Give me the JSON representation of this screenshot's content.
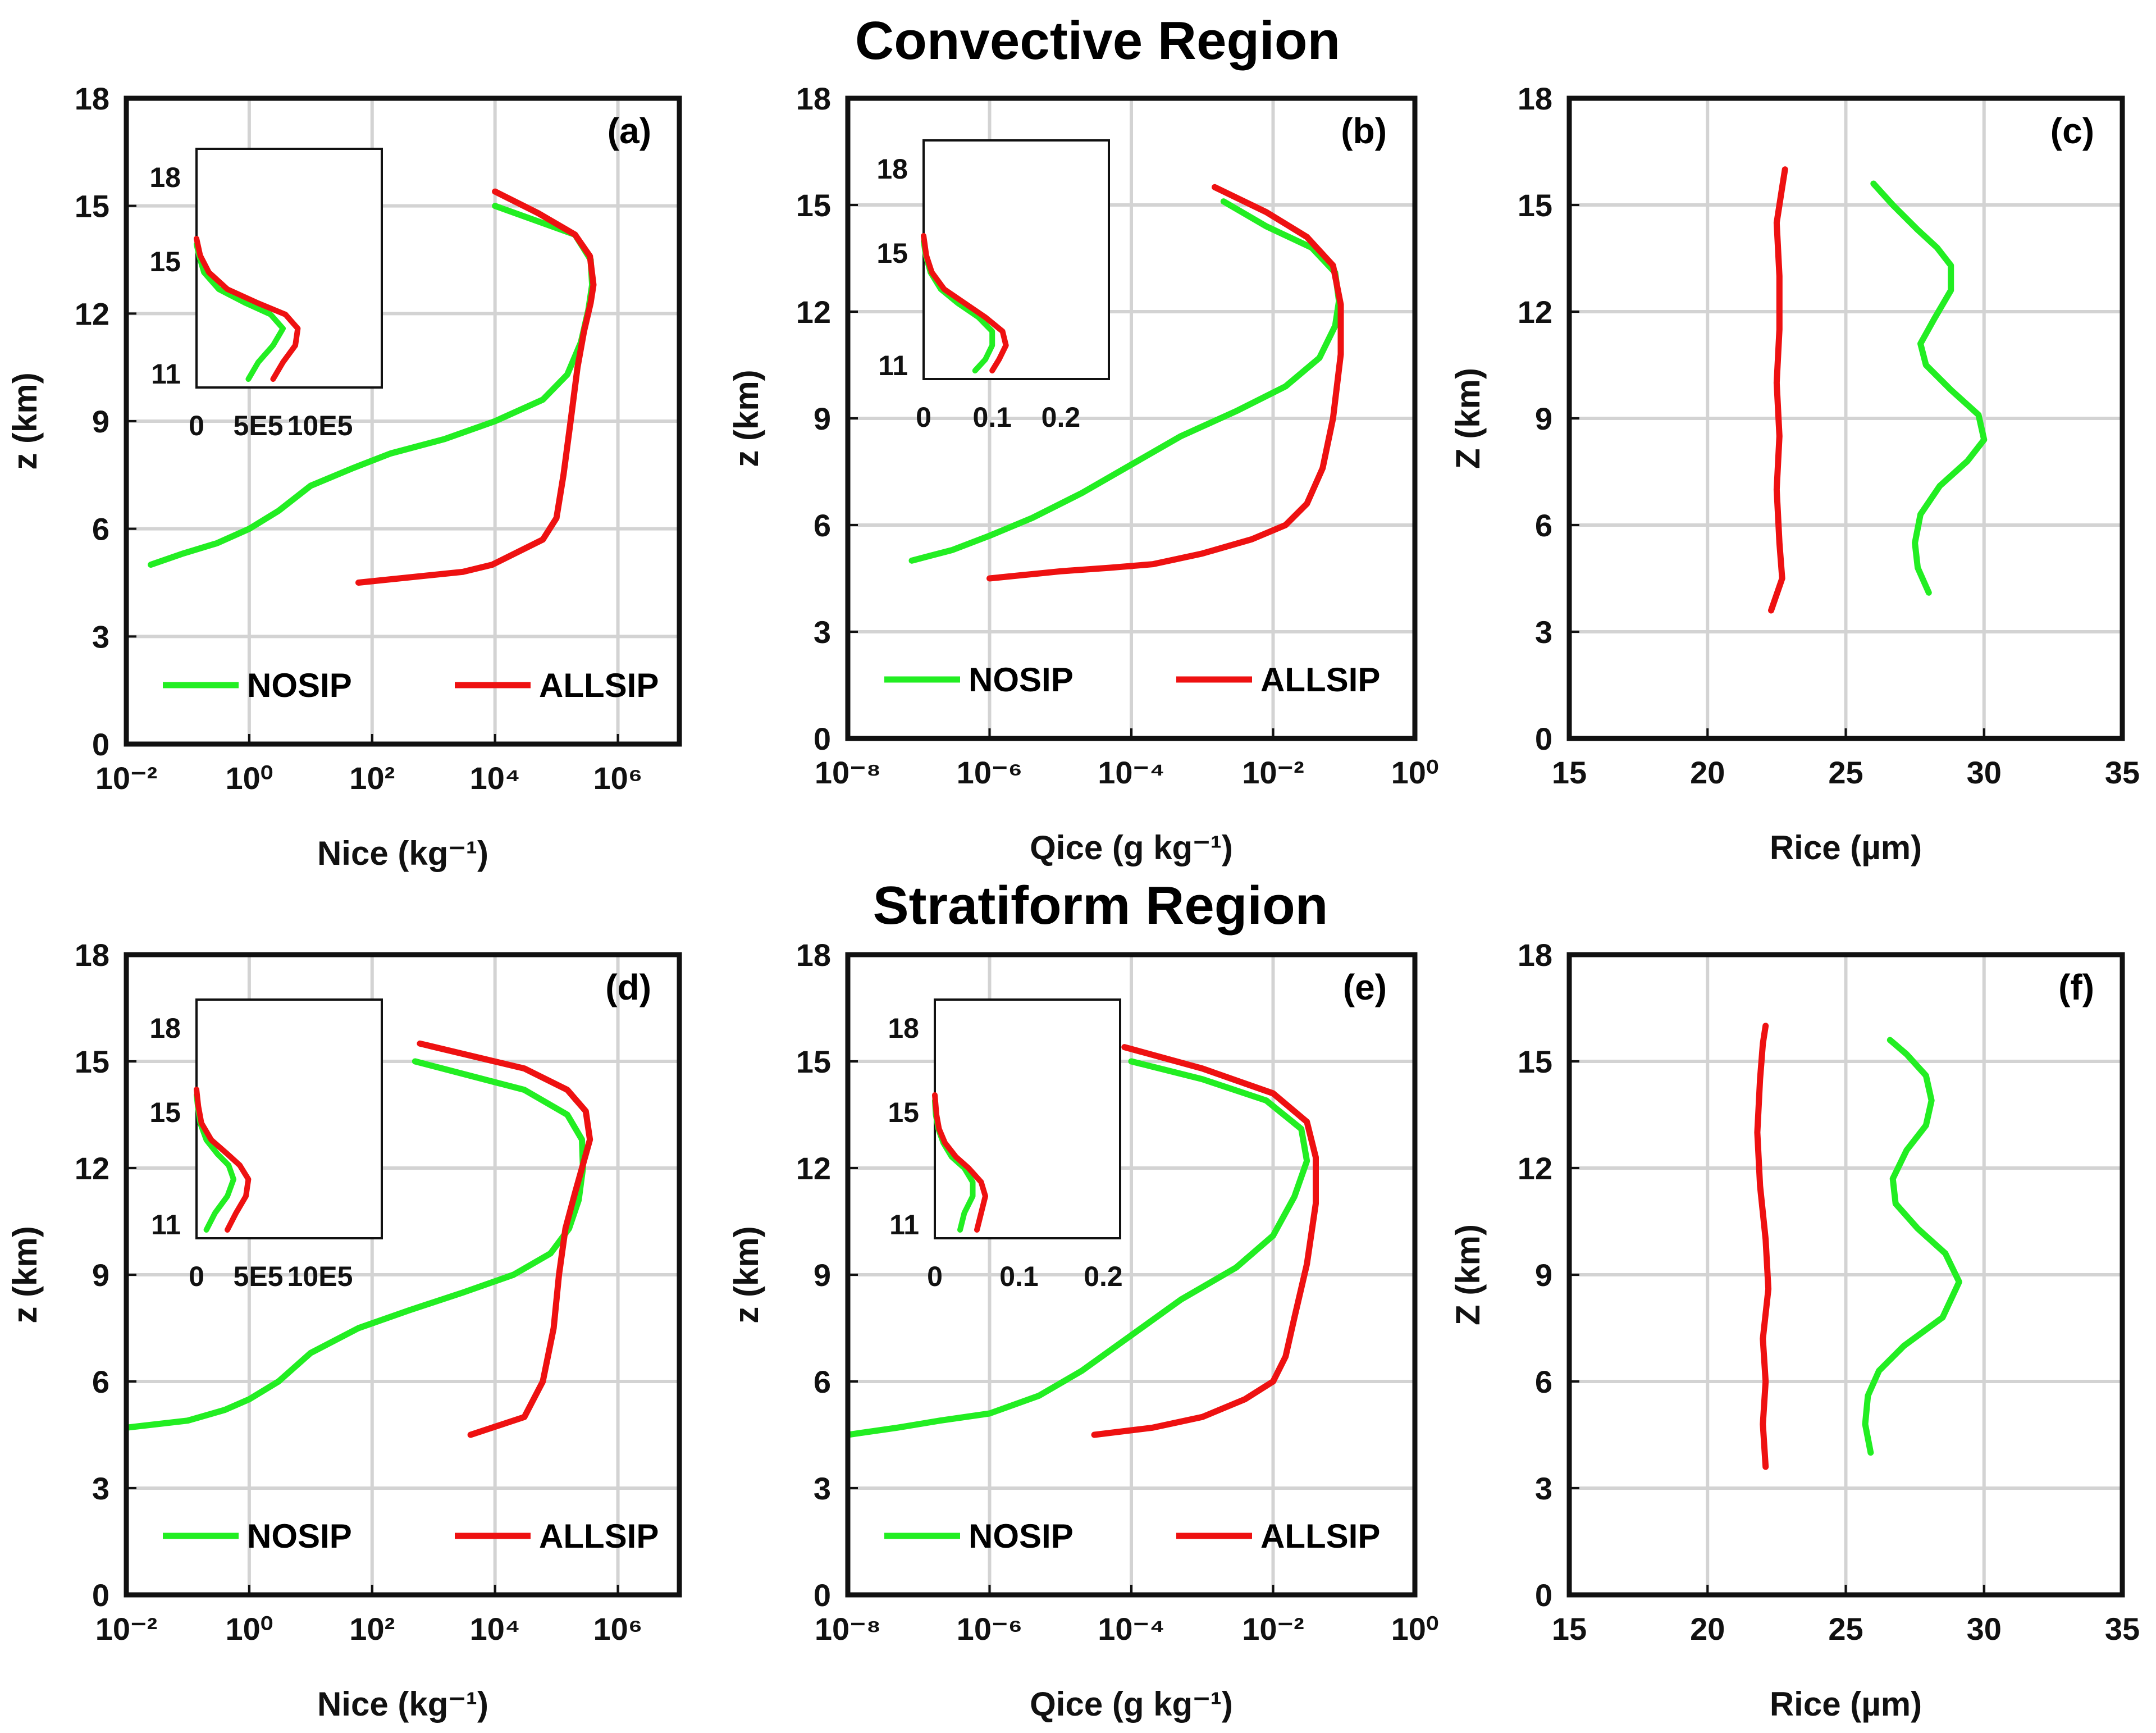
{
  "section_titles": {
    "top": "Convective Region",
    "bottom": "Stratiform Region"
  },
  "colors": {
    "nosip": "#22ee22",
    "allsip": "#ee1111",
    "grid": "#d3d3d3",
    "axes": "#111111"
  },
  "chart_data": [
    {
      "panel": "(a)",
      "type": "line",
      "xscale": "log",
      "xlim": [
        0.01,
        10000000
      ],
      "ylim": [
        0,
        18
      ],
      "xlabel": "Nice (kg⁻¹)",
      "ylabel": "z (km)",
      "xticks": [
        0.01,
        1,
        100,
        10000,
        1000000
      ],
      "xtick_labels": [
        "10⁻²",
        "10⁰",
        "10²",
        "10⁴",
        "10⁶"
      ],
      "yticks": [
        0,
        3,
        6,
        9,
        12,
        15,
        18
      ],
      "ytick_labels": [
        "0",
        "3",
        "6",
        "9",
        "12",
        "15",
        "18"
      ],
      "grid": true,
      "legend_position": "bottom",
      "series": [
        {
          "name": "NOSIP",
          "x": [
            0.025,
            0.08,
            0.3,
            1,
            3,
            10,
            50,
            200,
            1500,
            10000,
            60000,
            150000,
            250000,
            330000,
            380000,
            360000,
            200000,
            10000
          ],
          "y": [
            5.0,
            5.3,
            5.6,
            6.0,
            6.5,
            7.2,
            7.7,
            8.1,
            8.5,
            9.0,
            9.6,
            10.3,
            11.2,
            12.1,
            12.8,
            13.5,
            14.2,
            15.0
          ]
        },
        {
          "name": "ALLSIP",
          "x": [
            60,
            3000,
            9000,
            60000,
            100000,
            130000,
            170000,
            220000,
            280000,
            360000,
            400000,
            350000,
            200000,
            50000,
            10000
          ],
          "y": [
            4.5,
            4.8,
            5.0,
            5.7,
            6.3,
            7.5,
            9.0,
            10.5,
            11.5,
            12.3,
            12.8,
            13.6,
            14.2,
            14.8,
            15.4
          ]
        }
      ],
      "inset": {
        "xlim": [
          0,
          1500000
        ],
        "ylim": [
          10.5,
          19
        ],
        "xticks": [
          0,
          500000,
          1000000
        ],
        "xtick_labels": [
          "0",
          "5E5",
          "10E5"
        ],
        "yticks": [
          11,
          15,
          18
        ],
        "ytick_labels": [
          "11",
          "15",
          "18"
        ],
        "series": [
          {
            "name": "NOSIP",
            "x": [
              420000,
              500000,
              620000,
              700000,
              600000,
              400000,
              180000,
              60000,
              20000,
              0
            ],
            "y": [
              10.8,
              11.4,
              12.0,
              12.6,
              13.1,
              13.5,
              14.0,
              14.6,
              15.2,
              15.6
            ]
          },
          {
            "name": "ALLSIP",
            "x": [
              620000,
              700000,
              800000,
              820000,
              720000,
              500000,
              250000,
              100000,
              30000,
              0
            ],
            "y": [
              10.8,
              11.4,
              12.0,
              12.6,
              13.1,
              13.5,
              14.0,
              14.6,
              15.2,
              15.8
            ]
          }
        ]
      }
    },
    {
      "panel": "(b)",
      "type": "line",
      "xscale": "log",
      "xlim": [
        1e-08,
        1
      ],
      "ylim": [
        0,
        18
      ],
      "xlabel": "Qice (g kg⁻¹)",
      "ylabel": "z (km)",
      "xticks": [
        1e-08,
        1e-06,
        0.0001,
        0.01,
        1
      ],
      "xtick_labels": [
        "10⁻⁸",
        "10⁻⁶",
        "10⁻⁴",
        "10⁻²",
        "10⁰"
      ],
      "yticks": [
        0,
        3,
        6,
        9,
        12,
        15,
        18
      ],
      "ytick_labels": [
        "0",
        "3",
        "6",
        "9",
        "12",
        "15",
        "18"
      ],
      "grid": true,
      "legend_position": "bottom",
      "series": [
        {
          "name": "NOSIP",
          "x": [
            8e-08,
            3e-07,
            1e-06,
            4e-06,
            2e-05,
            0.0001,
            0.0005,
            0.003,
            0.015,
            0.045,
            0.075,
            0.085,
            0.075,
            0.035,
            0.008,
            0.002
          ],
          "y": [
            5.0,
            5.3,
            5.7,
            6.2,
            6.9,
            7.7,
            8.5,
            9.2,
            9.9,
            10.7,
            11.6,
            12.3,
            13.1,
            13.8,
            14.4,
            15.1
          ]
        },
        {
          "name": "ALLSIP",
          "x": [
            1e-06,
            1e-05,
            5e-05,
            0.0002,
            0.001,
            0.005,
            0.015,
            0.03,
            0.05,
            0.07,
            0.09,
            0.09,
            0.07,
            0.03,
            0.008,
            0.0015
          ],
          "y": [
            4.5,
            4.7,
            4.8,
            4.9,
            5.2,
            5.6,
            6.0,
            6.6,
            7.6,
            9.0,
            10.8,
            12.2,
            13.3,
            14.1,
            14.8,
            15.5
          ]
        }
      ],
      "inset": {
        "xlim": [
          0,
          0.27
        ],
        "ylim": [
          10.5,
          19
        ],
        "xticks": [
          0,
          0.1,
          0.2
        ],
        "xtick_labels": [
          "0",
          "0.1",
          "0.2"
        ],
        "yticks": [
          11,
          15,
          18
        ],
        "ytick_labels": [
          "11",
          "15",
          "18"
        ],
        "series": [
          {
            "name": "NOSIP",
            "x": [
              0.075,
              0.09,
              0.1,
              0.1,
              0.08,
              0.05,
              0.025,
              0.01,
              0.003,
              0
            ],
            "y": [
              10.8,
              11.2,
              11.7,
              12.2,
              12.7,
              13.2,
              13.7,
              14.3,
              14.9,
              15.4
            ]
          },
          {
            "name": "ALLSIP",
            "x": [
              0.1,
              0.11,
              0.12,
              0.115,
              0.09,
              0.06,
              0.03,
              0.012,
              0.004,
              0
            ],
            "y": [
              10.8,
              11.2,
              11.7,
              12.2,
              12.7,
              13.2,
              13.7,
              14.3,
              14.9,
              15.6
            ]
          }
        ]
      }
    },
    {
      "panel": "(c)",
      "type": "line",
      "xscale": "linear",
      "xlim": [
        15,
        35
      ],
      "ylim": [
        0,
        18
      ],
      "xlabel": "Rice (µm)",
      "ylabel": "Z (km)",
      "xticks": [
        15,
        20,
        25,
        30,
        35
      ],
      "xtick_labels": [
        "15",
        "20",
        "25",
        "30",
        "35"
      ],
      "yticks": [
        0,
        3,
        6,
        9,
        12,
        15,
        18
      ],
      "ytick_labels": [
        "0",
        "3",
        "6",
        "9",
        "12",
        "15",
        "18"
      ],
      "grid": true,
      "series": [
        {
          "name": "NOSIP",
          "x": [
            28.0,
            27.6,
            27.5,
            27.7,
            28.4,
            29.4,
            30.0,
            29.8,
            28.8,
            27.9,
            27.7,
            28.2,
            28.8,
            28.8,
            28.3,
            27.6,
            26.7,
            26.0
          ],
          "y": [
            4.1,
            4.8,
            5.5,
            6.3,
            7.1,
            7.8,
            8.4,
            9.1,
            9.8,
            10.5,
            11.1,
            11.8,
            12.6,
            13.3,
            13.8,
            14.3,
            15.0,
            15.6
          ]
        },
        {
          "name": "ALLSIP",
          "x": [
            22.3,
            22.7,
            22.6,
            22.5,
            22.6,
            22.5,
            22.6,
            22.6,
            22.5,
            22.7,
            22.8
          ],
          "y": [
            3.6,
            4.5,
            5.5,
            7.0,
            8.5,
            10.0,
            11.5,
            13.0,
            14.5,
            15.5,
            16.0
          ]
        }
      ]
    },
    {
      "panel": "(d)",
      "type": "line",
      "xscale": "log",
      "xlim": [
        0.01,
        10000000
      ],
      "ylim": [
        0,
        18
      ],
      "xlabel": "Nice (kg⁻¹)",
      "ylabel": "z (km)",
      "xticks": [
        0.01,
        1,
        100,
        10000,
        1000000
      ],
      "xtick_labels": [
        "10⁻²",
        "10⁰",
        "10²",
        "10⁴",
        "10⁶"
      ],
      "yticks": [
        0,
        3,
        6,
        9,
        12,
        15,
        18
      ],
      "ytick_labels": [
        "0",
        "3",
        "6",
        "9",
        "12",
        "15",
        "18"
      ],
      "grid": true,
      "legend_position": "bottom",
      "series": [
        {
          "name": "NOSIP",
          "x": [
            0.01,
            0.1,
            0.4,
            1,
            3,
            10,
            60,
            400,
            3000,
            20000,
            80000,
            160000,
            230000,
            270000,
            260000,
            150000,
            30000,
            500
          ],
          "y": [
            4.7,
            4.9,
            5.2,
            5.5,
            6.0,
            6.8,
            7.5,
            8.0,
            8.5,
            9.0,
            9.6,
            10.3,
            11.1,
            12.0,
            12.8,
            13.5,
            14.2,
            15.0
          ]
        },
        {
          "name": "ALLSIP",
          "x": [
            4000,
            30000,
            60000,
            90000,
            110000,
            140000,
            200000,
            280000,
            350000,
            300000,
            150000,
            30000,
            600
          ],
          "y": [
            4.5,
            5.0,
            6.0,
            7.5,
            9.0,
            10.3,
            11.3,
            12.2,
            12.8,
            13.6,
            14.2,
            14.8,
            15.5
          ]
        }
      ],
      "inset": {
        "xlim": [
          0,
          1500000
        ],
        "ylim": [
          10.5,
          19
        ],
        "xticks": [
          0,
          500000,
          1000000
        ],
        "xtick_labels": [
          "0",
          "5E5",
          "10E5"
        ],
        "yticks": [
          11,
          15,
          18
        ],
        "ytick_labels": [
          "11",
          "15",
          "18"
        ],
        "series": [
          {
            "name": "NOSIP",
            "x": [
              80000,
              150000,
              250000,
              300000,
              260000,
              170000,
              80000,
              30000,
              10000,
              0
            ],
            "y": [
              10.8,
              11.4,
              12.0,
              12.6,
              13.1,
              13.5,
              14.0,
              14.6,
              15.2,
              15.6
            ]
          },
          {
            "name": "ALLSIP",
            "x": [
              250000,
              320000,
              400000,
              420000,
              350000,
              250000,
              120000,
              40000,
              15000,
              0
            ],
            "y": [
              10.8,
              11.4,
              12.0,
              12.6,
              13.1,
              13.5,
              14.0,
              14.6,
              15.2,
              15.8
            ]
          }
        ]
      }
    },
    {
      "panel": "(e)",
      "type": "line",
      "xscale": "log",
      "xlim": [
        1e-08,
        1
      ],
      "ylim": [
        0,
        18
      ],
      "xlabel": "Qice (g kg⁻¹)",
      "ylabel": "z (km)",
      "xticks": [
        1e-08,
        1e-06,
        0.0001,
        0.01,
        1
      ],
      "xtick_labels": [
        "10⁻⁸",
        "10⁻⁶",
        "10⁻⁴",
        "10⁻²",
        "10⁰"
      ],
      "yticks": [
        0,
        3,
        6,
        9,
        12,
        15,
        18
      ],
      "ytick_labels": [
        "0",
        "3",
        "6",
        "9",
        "12",
        "15",
        "18"
      ],
      "grid": true,
      "legend_position": "bottom",
      "series": [
        {
          "name": "NOSIP",
          "x": [
            1e-08,
            5e-08,
            2e-07,
            1e-06,
            5e-06,
            2e-05,
            0.0001,
            0.0005,
            0.003,
            0.01,
            0.02,
            0.03,
            0.025,
            0.008,
            0.001,
            0.0001
          ],
          "y": [
            4.5,
            4.7,
            4.9,
            5.1,
            5.6,
            6.3,
            7.3,
            8.3,
            9.2,
            10.1,
            11.2,
            12.2,
            13.1,
            13.9,
            14.5,
            15.0
          ]
        },
        {
          "name": "ALLSIP",
          "x": [
            3e-05,
            0.0002,
            0.001,
            0.004,
            0.01,
            0.015,
            0.02,
            0.03,
            0.04,
            0.04,
            0.03,
            0.01,
            0.001,
            8e-05
          ],
          "y": [
            4.5,
            4.7,
            5.0,
            5.5,
            6.0,
            6.7,
            7.8,
            9.3,
            11.0,
            12.3,
            13.3,
            14.1,
            14.8,
            15.4
          ]
        }
      ],
      "inset": {
        "xlim": [
          0,
          0.22
        ],
        "ylim": [
          10.5,
          19
        ],
        "xticks": [
          0,
          0.1,
          0.2
        ],
        "xtick_labels": [
          "0",
          "0.1",
          "0.2"
        ],
        "yticks": [
          11,
          15,
          18
        ],
        "ytick_labels": [
          "11",
          "15",
          "18"
        ],
        "series": [
          {
            "name": "NOSIP",
            "x": [
              0.03,
              0.035,
              0.045,
              0.045,
              0.035,
              0.02,
              0.01,
              0.004,
              0.001,
              0
            ],
            "y": [
              10.8,
              11.4,
              12.0,
              12.5,
              13.0,
              13.4,
              13.9,
              14.4,
              14.9,
              15.4
            ]
          },
          {
            "name": "ALLSIP",
            "x": [
              0.05,
              0.055,
              0.06,
              0.055,
              0.04,
              0.025,
              0.012,
              0.005,
              0.002,
              0
            ],
            "y": [
              10.8,
              11.4,
              12.0,
              12.5,
              13.0,
              13.4,
              13.9,
              14.4,
              14.9,
              15.6
            ]
          }
        ]
      }
    },
    {
      "panel": "(f)",
      "type": "line",
      "xscale": "linear",
      "xlim": [
        15,
        35
      ],
      "ylim": [
        0,
        18
      ],
      "xlabel": "Rice (µm)",
      "ylabel": "Z (km)",
      "xticks": [
        15,
        20,
        25,
        30,
        35
      ],
      "xtick_labels": [
        "15",
        "20",
        "25",
        "30",
        "35"
      ],
      "yticks": [
        0,
        3,
        6,
        9,
        12,
        15,
        18
      ],
      "ytick_labels": [
        "0",
        "3",
        "6",
        "9",
        "12",
        "15",
        "18"
      ],
      "grid": true,
      "series": [
        {
          "name": "NOSIP",
          "x": [
            25.9,
            25.7,
            25.8,
            26.2,
            27.1,
            28.5,
            29.1,
            28.6,
            27.6,
            26.8,
            26.7,
            27.2,
            27.9,
            28.1,
            27.9,
            27.2,
            26.6
          ],
          "y": [
            4.0,
            4.8,
            5.6,
            6.3,
            7.0,
            7.8,
            8.8,
            9.6,
            10.3,
            11.0,
            11.7,
            12.5,
            13.2,
            13.9,
            14.6,
            15.2,
            15.6
          ]
        },
        {
          "name": "ALLSIP",
          "x": [
            22.1,
            22.0,
            22.1,
            22.0,
            22.2,
            22.1,
            21.9,
            21.8,
            21.9,
            22.0,
            22.1
          ],
          "y": [
            3.6,
            4.8,
            6.0,
            7.2,
            8.6,
            10.0,
            11.5,
            13.0,
            14.5,
            15.5,
            16.0
          ]
        }
      ]
    }
  ]
}
